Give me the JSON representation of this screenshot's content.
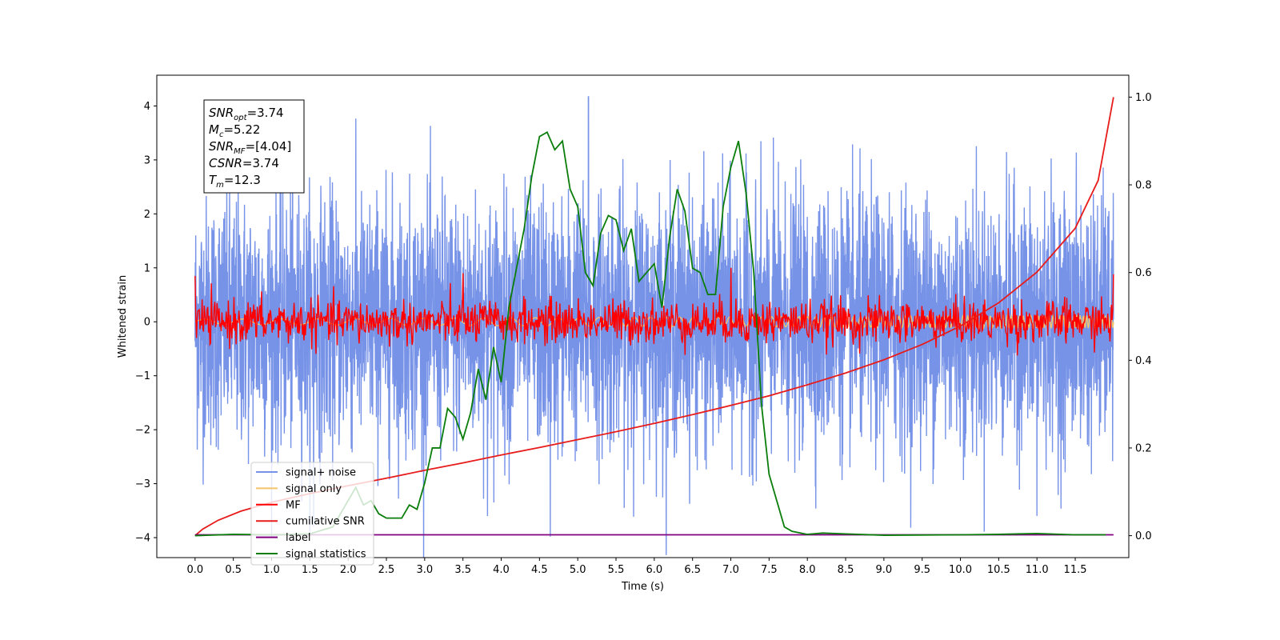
{
  "chart_data": {
    "type": "line",
    "xlabel": "Time (s)",
    "ylabel": "Whitened strain",
    "xlim": [
      -0.5,
      12.2
    ],
    "ylim": [
      -4.37,
      4.57
    ],
    "y2lim": [
      -0.05,
      1.05
    ],
    "x_ticks": [
      "0.0",
      "0.5",
      "1.0",
      "1.5",
      "2.0",
      "2.5",
      "3.0",
      "3.5",
      "4.0",
      "4.5",
      "5.0",
      "5.5",
      "6.0",
      "6.5",
      "7.0",
      "7.5",
      "8.0",
      "8.5",
      "9.0",
      "9.5",
      "10.0",
      "10.5",
      "11.0",
      "11.5"
    ],
    "y_ticks": [
      -4,
      -3,
      -2,
      -1,
      0,
      1,
      2,
      3,
      4
    ],
    "y2_ticks": [
      "0.0",
      "0.2",
      "0.4",
      "0.6",
      "0.8",
      "1.0"
    ],
    "grid": false,
    "legend_position": "lower-left",
    "annotation": {
      "lines": [
        {
          "sym": "SNR",
          "sub": "opt",
          "value": "=3.74"
        },
        {
          "sym": "M",
          "sub": "c",
          "value": "=5.22"
        },
        {
          "sym": "SNR",
          "sub": "MF",
          "value": "=[4.04]"
        },
        {
          "sym": "CSNR",
          "sub": "",
          "value": "=3.74"
        },
        {
          "sym": "T",
          "sub": "m",
          "value": "=12.3"
        }
      ]
    },
    "series": [
      {
        "name": "signal+ noise",
        "color": "#7793e8",
        "axis": "left",
        "kind": "noise",
        "x_range": [
          0,
          12.0
        ],
        "sigma": 1.15,
        "spikes": [
          [
            5.14,
            4.17
          ],
          [
            4.64,
            -3.98
          ],
          [
            1.55,
            -3.8
          ],
          [
            3.82,
            -3.6
          ],
          [
            11.0,
            -3.6
          ]
        ]
      },
      {
        "name": "signal only",
        "color": "#f5c46a",
        "axis": "left",
        "kind": "chirp",
        "x_range": [
          0,
          12.0
        ],
        "amplitude": 0.12
      },
      {
        "name": "MF",
        "color": "#ff0000",
        "axis": "left",
        "kind": "noise",
        "x_range": [
          0,
          12.0
        ],
        "sigma": 0.2,
        "spikes": [
          [
            0.0,
            0.85
          ],
          [
            3.5,
            0.9
          ],
          [
            7.0,
            1.0
          ],
          [
            12.0,
            0.88
          ]
        ]
      },
      {
        "name": "cumilative SNR",
        "color": "#e81b1b",
        "axis": "right",
        "x": [
          0.0,
          0.1,
          0.3,
          0.6,
          1.0,
          1.5,
          2.0,
          2.5,
          3.0,
          3.5,
          4.0,
          4.5,
          5.0,
          5.5,
          6.0,
          6.5,
          7.0,
          7.5,
          8.0,
          8.5,
          9.0,
          9.5,
          10.0,
          10.5,
          11.0,
          11.5,
          11.8,
          12.0
        ],
        "y": [
          0.0,
          0.015,
          0.035,
          0.056,
          0.076,
          0.096,
          0.114,
          0.131,
          0.149,
          0.166,
          0.184,
          0.201,
          0.219,
          0.237,
          0.256,
          0.276,
          0.297,
          0.319,
          0.344,
          0.371,
          0.401,
          0.436,
          0.478,
          0.531,
          0.601,
          0.701,
          0.81,
          1.0
        ]
      },
      {
        "name": "label",
        "color": "#800080",
        "axis": "right",
        "x": [
          0.0,
          12.0
        ],
        "y": [
          0.002,
          0.002
        ]
      },
      {
        "name": "signal statistics",
        "color": "#0a7d0a",
        "axis": "right",
        "x": [
          0.0,
          0.5,
          1.0,
          1.5,
          1.8,
          2.0,
          2.1,
          2.2,
          2.3,
          2.4,
          2.5,
          2.7,
          2.8,
          2.9,
          3.0,
          3.1,
          3.2,
          3.3,
          3.4,
          3.5,
          3.6,
          3.7,
          3.8,
          3.9,
          4.0,
          4.1,
          4.2,
          4.3,
          4.4,
          4.5,
          4.6,
          4.7,
          4.8,
          4.9,
          5.0,
          5.1,
          5.2,
          5.3,
          5.4,
          5.5,
          5.6,
          5.7,
          5.8,
          5.9,
          6.0,
          6.1,
          6.2,
          6.3,
          6.4,
          6.5,
          6.6,
          6.7,
          6.8,
          6.9,
          7.0,
          7.1,
          7.2,
          7.3,
          7.4,
          7.5,
          7.6,
          7.7,
          7.8,
          8.0,
          8.2,
          8.5,
          9.0,
          10.0,
          10.5,
          11.0,
          11.5,
          11.9
        ],
        "y": [
          0.0,
          0.003,
          0.002,
          0.004,
          0.02,
          0.08,
          0.11,
          0.07,
          0.08,
          0.05,
          0.04,
          0.04,
          0.07,
          0.06,
          0.12,
          0.2,
          0.2,
          0.29,
          0.27,
          0.22,
          0.28,
          0.38,
          0.31,
          0.43,
          0.35,
          0.52,
          0.61,
          0.7,
          0.82,
          0.91,
          0.92,
          0.88,
          0.9,
          0.79,
          0.75,
          0.6,
          0.57,
          0.69,
          0.73,
          0.72,
          0.65,
          0.7,
          0.58,
          0.6,
          0.62,
          0.52,
          0.68,
          0.79,
          0.74,
          0.61,
          0.6,
          0.55,
          0.55,
          0.75,
          0.84,
          0.9,
          0.78,
          0.6,
          0.3,
          0.14,
          0.08,
          0.02,
          0.01,
          0.003,
          0.006,
          0.004,
          0.001,
          0.002,
          0.003,
          0.005,
          0.002,
          0.002
        ]
      }
    ]
  }
}
